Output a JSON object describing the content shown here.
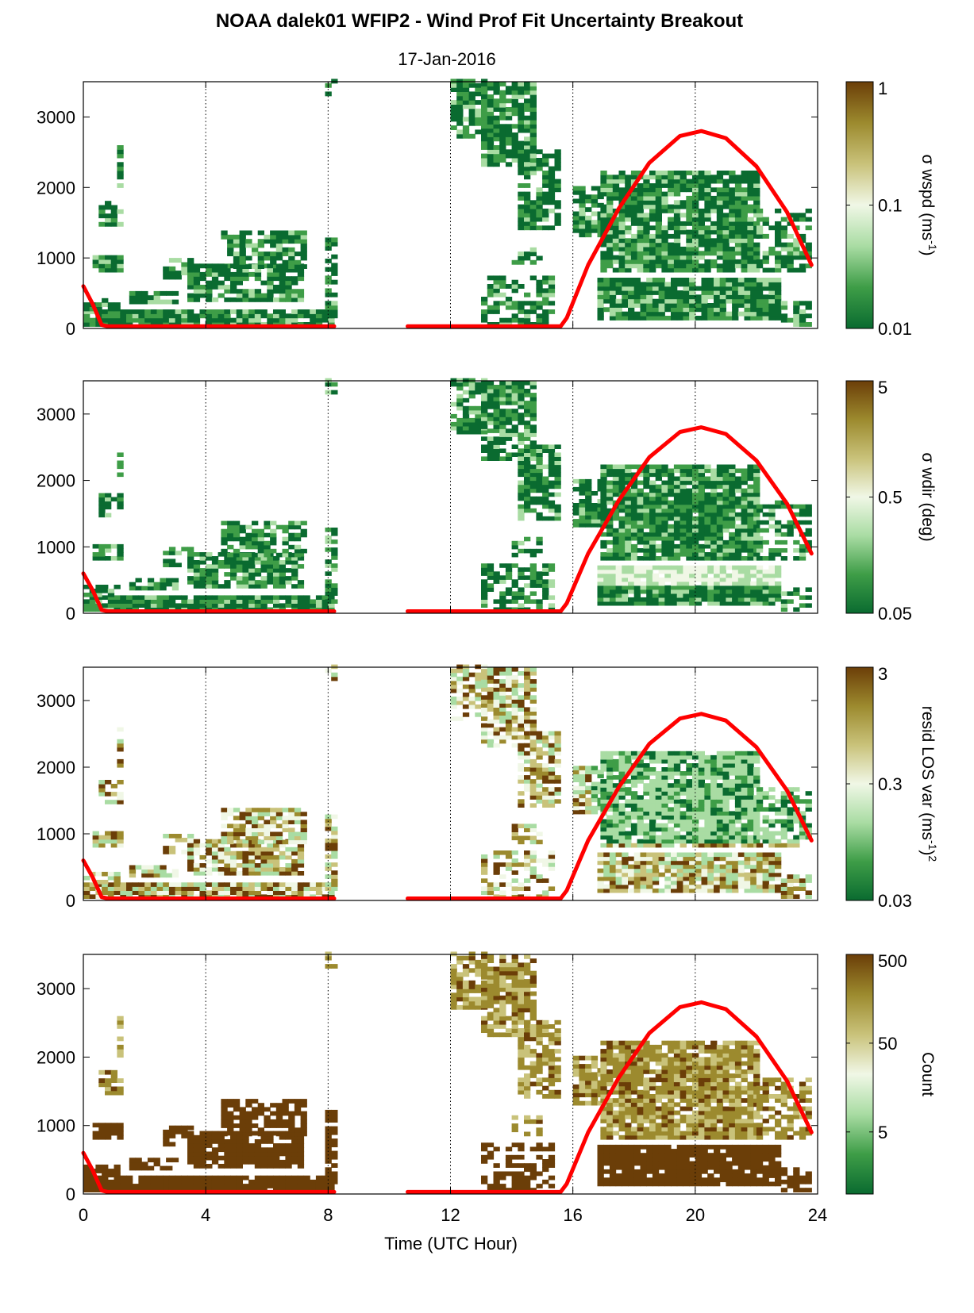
{
  "figure": {
    "title": "NOAA dalek01 WFIP2 - Wind Prof Fit Uncertainty Breakout",
    "subtitle": "17-Jan-2016",
    "xlabel": "Time (UTC Hour)"
  },
  "colors": {
    "dark_green": "#0a6b30",
    "green": "#3e9d47",
    "light_green": "#a9dca3",
    "pale": "#f0f7e6",
    "khaki": "#c9c27a",
    "olive": "#9c8a2e",
    "brown": "#6b3e08",
    "sun_line": "#ff0000",
    "grid": "#000000"
  },
  "chart_data": [
    {
      "type": "heatmap",
      "panel": "wspd",
      "colorbar_label": "σ wspd (ms",
      "colorbar_label_sup": "-1",
      "colorbar_label_tail": ")",
      "colorbar_scale": "log",
      "colorbar_ticks": [
        "1",
        "0.1",
        "0.01"
      ],
      "colorbar_range": [
        0.01,
        1
      ]
    },
    {
      "type": "heatmap",
      "panel": "wdir",
      "colorbar_label": "σ wdir (deg)",
      "colorbar_scale": "log",
      "colorbar_ticks": [
        "5",
        "0.5",
        "0.05"
      ],
      "colorbar_range": [
        0.05,
        5
      ]
    },
    {
      "type": "heatmap",
      "panel": "resid",
      "colorbar_label": "resid LOS var (ms",
      "colorbar_label_sup": "-1",
      "colorbar_label_tail": ")",
      "colorbar_label_sup2": "2",
      "colorbar_scale": "log",
      "colorbar_ticks": [
        "3",
        "0.3",
        "0.03"
      ],
      "colorbar_range": [
        0.03,
        3
      ]
    },
    {
      "type": "heatmap",
      "panel": "count",
      "colorbar_label": "Count",
      "colorbar_scale": "log",
      "colorbar_ticks": [
        "500",
        "50",
        "5"
      ],
      "colorbar_range": [
        1,
        500
      ]
    }
  ],
  "axes": {
    "x_range": [
      0,
      24
    ],
    "x_ticks": [
      "0",
      "4",
      "8",
      "12",
      "16",
      "20",
      "24"
    ],
    "x_gridlines": [
      4,
      8,
      12,
      16,
      20
    ],
    "y_range": [
      0,
      3500
    ],
    "y_ticks": [
      "0",
      "1000",
      "2000",
      "3000"
    ]
  },
  "sun_elevation_curve": {
    "segments": [
      [
        [
          0,
          600
        ],
        [
          0.3,
          350
        ],
        [
          0.6,
          50
        ],
        [
          0.8,
          30
        ],
        [
          8.2,
          30
        ]
      ],
      [
        [
          10.6,
          30
        ],
        [
          15.6,
          30
        ],
        [
          15.8,
          150
        ],
        [
          16.5,
          900
        ],
        [
          17.5,
          1700
        ],
        [
          18.5,
          2350
        ],
        [
          19.5,
          2730
        ],
        [
          20.2,
          2800
        ],
        [
          21,
          2700
        ],
        [
          22,
          2300
        ],
        [
          23,
          1650
        ],
        [
          23.8,
          900
        ]
      ]
    ]
  }
}
